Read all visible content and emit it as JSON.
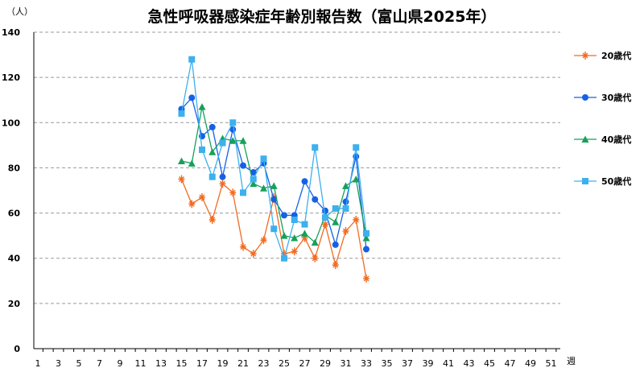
{
  "chart_data": {
    "type": "line",
    "title": "急性呼吸器感染症年齢別報告数（富山県2025年）",
    "ylabel": "（人）",
    "xlabel": "週",
    "ylim": [
      0,
      140
    ],
    "yticks": [
      0,
      20,
      40,
      60,
      80,
      100,
      120,
      140
    ],
    "xlim": [
      1,
      52
    ],
    "xtick_labels": [
      "1",
      "3",
      "5",
      "7",
      "9",
      "11",
      "13",
      "15",
      "17",
      "19",
      "21",
      "23",
      "25",
      "27",
      "29",
      "31",
      "33",
      "35",
      "37",
      "39",
      "41",
      "43",
      "45",
      "47",
      "49",
      "51"
    ],
    "x": [
      15,
      16,
      17,
      18,
      19,
      20,
      21,
      22,
      23,
      24,
      25,
      26,
      27,
      28,
      29,
      30,
      31,
      32,
      33
    ],
    "legend_position": "right",
    "grid": true,
    "series": [
      {
        "name": "20歳代",
        "marker": "asterisk",
        "color": "#F26B21",
        "values": [
          75,
          64,
          67,
          57,
          73,
          69,
          45,
          42,
          48,
          67,
          42,
          43,
          49,
          40,
          55,
          37,
          52,
          57,
          31
        ]
      },
      {
        "name": "30歳代",
        "marker": "circle",
        "color": "#1660E8",
        "values": [
          106,
          111,
          94,
          98,
          76,
          97,
          81,
          78,
          82,
          66,
          59,
          59,
          74,
          66,
          61,
          46,
          65,
          85,
          44
        ]
      },
      {
        "name": "40歳代",
        "marker": "triangle",
        "color": "#16A05A",
        "values": [
          83,
          82,
          107,
          87,
          93,
          92,
          92,
          73,
          71,
          72,
          50,
          49,
          51,
          47,
          59,
          56,
          72,
          75,
          49
        ]
      },
      {
        "name": "50歳代",
        "marker": "square",
        "color": "#3DB0EE",
        "values": [
          104,
          128,
          88,
          76,
          91,
          100,
          69,
          75,
          84,
          53,
          40,
          57,
          55,
          89,
          58,
          62,
          62,
          89,
          51
        ]
      }
    ]
  }
}
